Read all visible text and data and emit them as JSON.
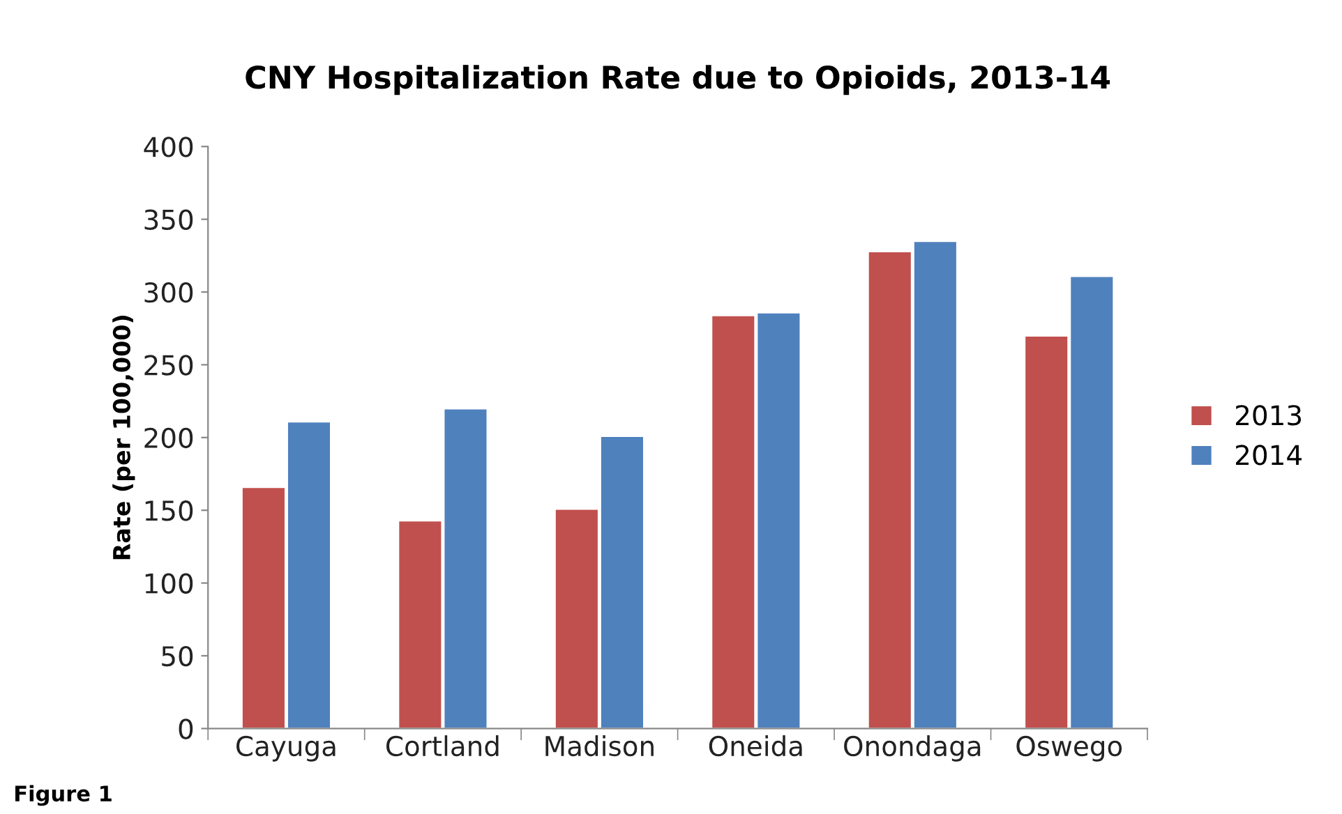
{
  "chart_data": {
    "type": "bar",
    "title": "CNY Hospitalization Rate due to Opioids, 2013-14",
    "ylabel": "Rate (per 100,000)",
    "categories": [
      "Cayuga",
      "Cortland",
      "Madison",
      "Oneida",
      "Onondaga",
      "Oswego"
    ],
    "series": [
      {
        "name": "2013",
        "color": "#c0504d",
        "values": [
          166,
          143,
          151,
          284,
          328,
          270
        ]
      },
      {
        "name": "2014",
        "color": "#4f81bd",
        "values": [
          211,
          220,
          201,
          286,
          335,
          311
        ]
      }
    ],
    "ylim": [
      0,
      400
    ],
    "yticks": [
      0,
      50,
      100,
      150,
      200,
      250,
      300,
      350,
      400
    ],
    "grid": false,
    "legend": "right",
    "annotations": [
      "Figure 1"
    ]
  }
}
